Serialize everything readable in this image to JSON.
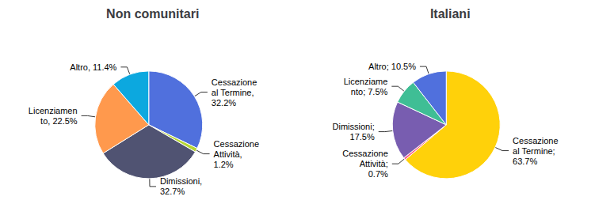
{
  "chart_data": [
    {
      "type": "pie",
      "title": "Non comunitari",
      "values": [
        32.2,
        1.2,
        32.7,
        22.5,
        11.4
      ],
      "value_labels": [
        "Cessazione\nal Termine,\n32.2%",
        "Cessazione\nAttività,\n1.2%",
        "Dimissioni,\n32.7%",
        "Licenziamen\nto, 22.5%",
        "Altro, 11.4%"
      ]
    },
    {
      "type": "pie",
      "title": "Italiani",
      "values": [
        63.7,
        0.7,
        17.5,
        7.5,
        10.5
      ],
      "value_labels": [
        "Cessazione\nal Termine;\n63.7%",
        "Cessazione\nAttività;\n0.7%",
        "Dimissioni;\n17.5%",
        "Licenziame\nnto; 7.5%",
        "Altro; 10.5%"
      ]
    }
  ]
}
